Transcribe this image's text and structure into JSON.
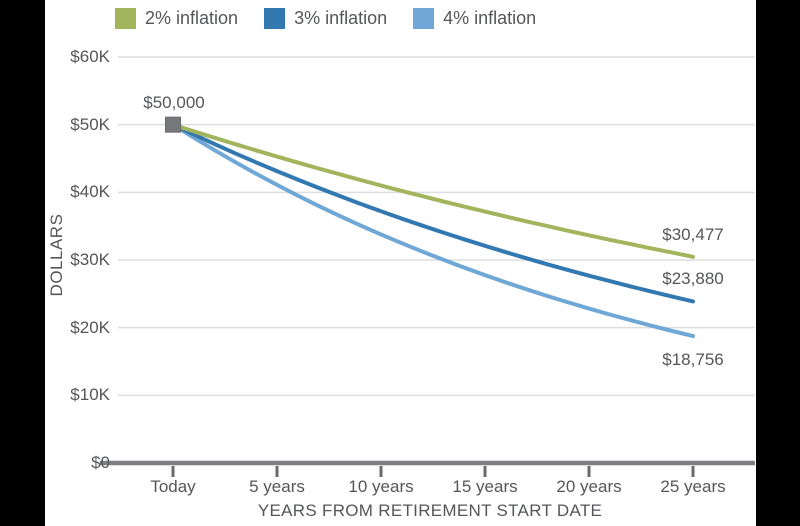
{
  "frame": {
    "bar_color": "#000000",
    "panel_color": "#ffffff"
  },
  "legend": {
    "items": [
      {
        "label": "2% inflation",
        "color": "#a2b45c"
      },
      {
        "label": "3% inflation",
        "color": "#3278b1"
      },
      {
        "label": "4% inflation",
        "color": "#6fa7d7"
      }
    ]
  },
  "chart_data": {
    "type": "line",
    "title": "",
    "xlabel": "YEARS FROM RETIREMENT START DATE",
    "ylabel": "DOLLARS",
    "x": [
      0,
      5,
      10,
      15,
      20,
      25
    ],
    "x_tick_labels": [
      "Today",
      "5 years",
      "10 years",
      "15 years",
      "20 years",
      "25 years"
    ],
    "y_ticks": [
      0,
      10000,
      20000,
      30000,
      40000,
      50000,
      60000
    ],
    "y_tick_labels": [
      "$0",
      "$10K",
      "$20K",
      "$30K",
      "$40K",
      "$50K",
      "$60K"
    ],
    "ylim": [
      0,
      60000
    ],
    "grid": "horizontal",
    "legend_position": "top",
    "start_point": {
      "x": 0,
      "value": 50000,
      "label": "$50,000",
      "marker": "square",
      "marker_color": "#77787b",
      "marker_border": "#6a6b6d"
    },
    "series": [
      {
        "name": "2% inflation",
        "color": "#a2b45c",
        "rate_pct": 2,
        "values": [
          50000,
          45287,
          41017,
          37151,
          33649,
          30477
        ],
        "end_label": "$30,477",
        "end_label_side": "above"
      },
      {
        "name": "3% inflation",
        "color": "#3278b1",
        "rate_pct": 3,
        "values": [
          50000,
          43131,
          37205,
          32093,
          27684,
          23880
        ],
        "end_label": "$23,880",
        "end_label_side": "above"
      },
      {
        "name": "4% inflation",
        "color": "#6fa7d7",
        "rate_pct": 4,
        "values": [
          50000,
          41096,
          33778,
          27763,
          22820,
          18756
        ],
        "end_label": "$18,756",
        "end_label_side": "below"
      }
    ],
    "axis_colors": {
      "gridline": "#dcddde",
      "baseline": "#7d7f83",
      "tick": "#696a6d",
      "text": "#54565a"
    }
  }
}
